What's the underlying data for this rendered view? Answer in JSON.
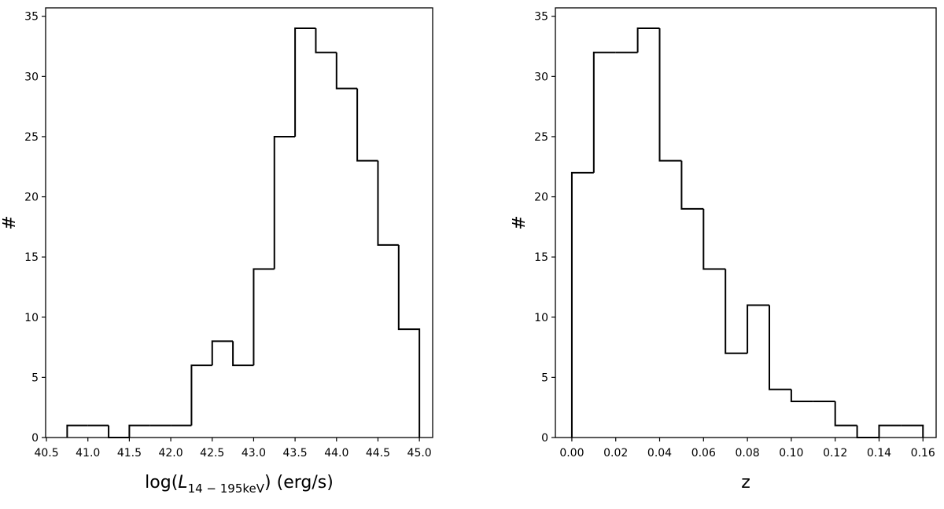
{
  "chart_data": [
    {
      "type": "histogram",
      "xlabel": {
        "prefix": "log(",
        "symbol": "L",
        "subscript": "14 − 195keV",
        "suffix": ") (erg/s)"
      },
      "ylabel": "#",
      "bins": [
        40.75,
        41.0,
        41.25,
        41.5,
        41.75,
        42.0,
        42.25,
        42.5,
        42.75,
        43.0,
        43.25,
        43.5,
        43.75,
        44.0,
        44.25,
        44.5,
        44.75,
        45.0
      ],
      "values": [
        1,
        1,
        0,
        1,
        1,
        1,
        6,
        8,
        6,
        14,
        25,
        34,
        32,
        29,
        23,
        16,
        9
      ],
      "color": "#000000",
      "xlim": [
        40.49,
        45.16
      ],
      "ylim": [
        0,
        35.7
      ],
      "xticks": [
        40.5,
        {
          "value": 41,
          "label": "41.0"
        },
        41.5,
        {
          "value": 42,
          "label": "42.0"
        },
        42.5,
        {
          "value": 43,
          "label": "43.0"
        },
        43.5,
        {
          "value": 44,
          "label": "44.0"
        },
        44.5,
        {
          "value": 45,
          "label": "45.0"
        }
      ],
      "yticks": [
        0,
        5,
        10,
        15,
        20,
        25,
        30,
        35
      ]
    },
    {
      "type": "histogram",
      "xlabel": {
        "prefix": "z"
      },
      "ylabel": "#",
      "bins": [
        0,
        0.01,
        0.02,
        0.03,
        0.04,
        0.05,
        0.06,
        0.07,
        0.08,
        0.09,
        0.1,
        0.11,
        0.12,
        0.13,
        0.14,
        0.15,
        0.16
      ],
      "values": [
        22,
        32,
        32,
        34,
        23,
        19,
        14,
        7,
        11,
        4,
        3,
        3,
        1,
        0,
        1,
        1
      ],
      "color": "#000000",
      "xlim": [
        -0.0075,
        0.166
      ],
      "ylim": [
        0,
        35.7
      ],
      "xticks": [
        {
          "value": 0,
          "label": "0.00"
        },
        0.02,
        0.04,
        0.06,
        0.08,
        {
          "value": 0.1,
          "label": "0.10"
        },
        0.12,
        0.14,
        0.16
      ],
      "yticks": [
        0,
        5,
        10,
        15,
        20,
        25,
        30,
        35
      ]
    }
  ]
}
